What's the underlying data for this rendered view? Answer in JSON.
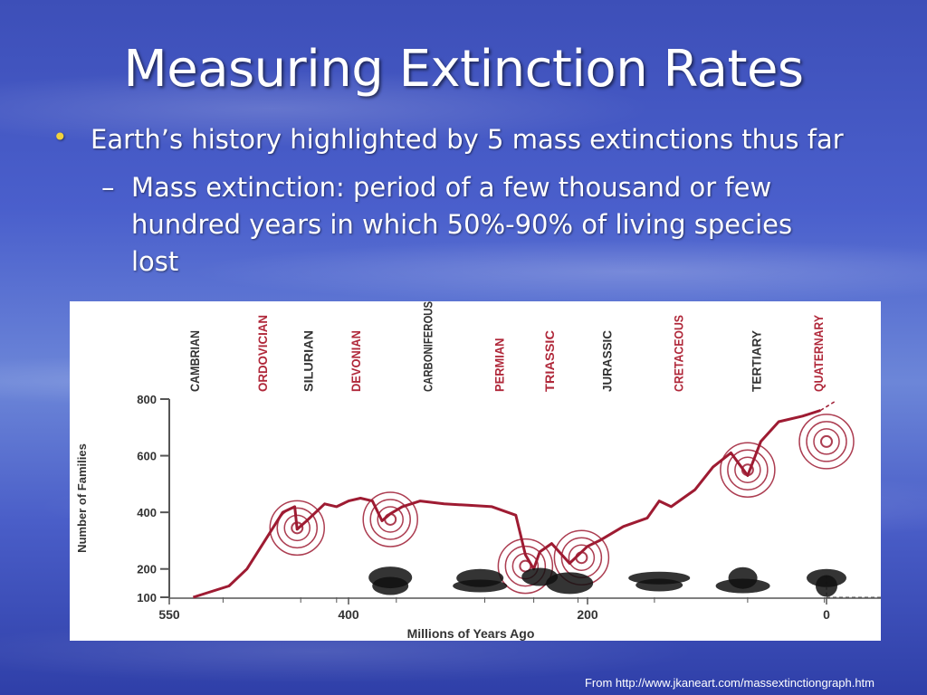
{
  "slide": {
    "title": "Measuring Extinction Rates",
    "bullet_marker": "•",
    "bullet": "Earth’s history highlighted by 5 mass extinctions thus far",
    "sub_marker": "–",
    "sub_bullet": "Mass extinction: period of a few thousand or few hundred years in which 50%-90% of living species lost",
    "credit": "From http://www.jkaneart.com/massextinctiongraph.htm"
  },
  "colors": {
    "line": "#9e1b32",
    "period_red": "#b0283a",
    "period_dark": "#333333",
    "axis": "#555555",
    "bullet_dot": "#f2d23c"
  },
  "chart_data": {
    "type": "line",
    "xlabel": "Millions of Years Ago",
    "ylabel": "Number of Families",
    "x_ticks": [
      550,
      400,
      200,
      0
    ],
    "y_ticks": [
      100,
      200,
      400,
      600,
      800
    ],
    "xlim": [
      550,
      0
    ],
    "ylim": [
      100,
      800
    ],
    "series": [
      {
        "x": [
          530,
          500,
          485,
          470,
          455,
          445,
          443,
          435,
          420,
          410,
          400,
          390,
          380,
          372,
          365,
          355,
          340,
          320,
          300,
          280,
          260,
          252,
          245,
          240,
          230,
          215,
          200,
          190,
          170,
          150,
          140,
          130,
          110,
          95,
          80,
          66,
          55,
          40,
          20,
          5
        ],
        "y": [
          100,
          140,
          200,
          300,
          400,
          420,
          340,
          370,
          430,
          420,
          440,
          450,
          440,
          370,
          395,
          420,
          440,
          430,
          425,
          420,
          390,
          250,
          200,
          260,
          290,
          220,
          280,
          300,
          350,
          380,
          440,
          420,
          480,
          560,
          610,
          530,
          650,
          720,
          740,
          760
        ]
      }
    ],
    "extinctions": [
      {
        "x": 443,
        "y": 345
      },
      {
        "x": 365,
        "y": 375
      },
      {
        "x": 252,
        "y": 210
      },
      {
        "x": 205,
        "y": 240
      },
      {
        "x": 66,
        "y": 550
      },
      {
        "x": 0,
        "y": 650
      }
    ],
    "periods": [
      {
        "label": "CAMBRIAN",
        "x": 525,
        "highlight": false
      },
      {
        "label": "ORDOVICIAN",
        "x": 468,
        "highlight": true
      },
      {
        "label": "SILURIAN",
        "x": 430,
        "highlight": false
      },
      {
        "label": "DEVONIAN",
        "x": 390,
        "highlight": true
      },
      {
        "label": "CARBONIFEROUS",
        "x": 330,
        "highlight": false
      },
      {
        "label": "PERMIAN",
        "x": 270,
        "highlight": true
      },
      {
        "label": "TRIASSIC",
        "x": 228,
        "highlight": true
      },
      {
        "label": "JURASSIC",
        "x": 180,
        "highlight": false
      },
      {
        "label": "CRETACEOUS",
        "x": 120,
        "highlight": true
      },
      {
        "label": "TERTIARY",
        "x": 55,
        "highlight": false
      },
      {
        "label": "QUATERNARY",
        "x": 3,
        "highlight": true
      }
    ],
    "period_boundaries": [
      505,
      440,
      410,
      360,
      286,
      245,
      208,
      144,
      66,
      1.8
    ]
  }
}
